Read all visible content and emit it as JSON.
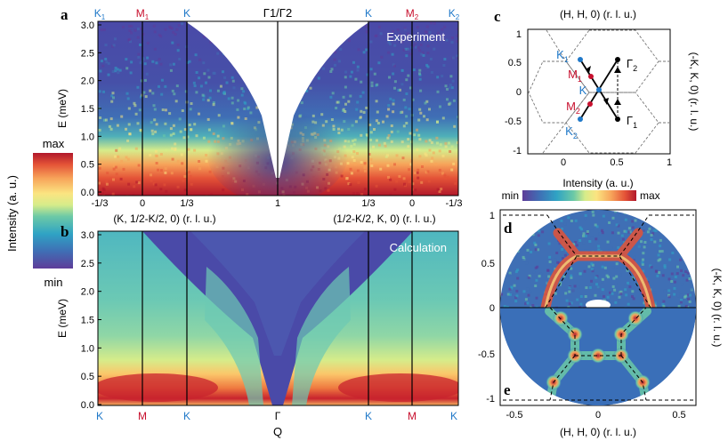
{
  "colors": {
    "k_blue": "#1f78c8",
    "m_red": "#c8102e",
    "cmap": [
      "#5e3c99",
      "#3f6fb5",
      "#2fa3c4",
      "#6cc9a6",
      "#d6ec8a",
      "#fbe481",
      "#f7a45a",
      "#e45337",
      "#b1182b"
    ]
  },
  "colorbar": {
    "title": "Intensity (a. u.)",
    "max_label": "max",
    "min_label": "min"
  },
  "panel_a": {
    "letter": "a",
    "inset_label": "Experiment",
    "ylabel": "E (meV)",
    "yticks": [
      "0.0",
      "0.5",
      "1.0",
      "1.5",
      "2.0",
      "2.5",
      "3.0"
    ],
    "top_labels": {
      "k1": {
        "base": "K",
        "sub": "1"
      },
      "m1": {
        "base": "M",
        "sub": "1"
      },
      "k_left": "K",
      "gamma": "Γ1/Γ2",
      "k_right": "K",
      "m2": {
        "base": "M",
        "sub": "2"
      },
      "k2": {
        "base": "K",
        "sub": "2"
      }
    },
    "xticks": [
      "-1/3",
      "0",
      "1/3",
      "1",
      "1/3",
      "0",
      "-1/3"
    ],
    "xlabel_left": "(K, 1/2-K/2, 0) (r. l. u.)",
    "xlabel_right": "(1/2-K/2, K, 0) (r. l. u.)"
  },
  "panel_b": {
    "letter": "b",
    "inset_label": "Calculation",
    "ylabel": "E (meV)",
    "yticks": [
      "0.0",
      "0.5",
      "1.0",
      "1.5",
      "2.0",
      "2.5",
      "3.0"
    ],
    "xticks": [
      "K",
      "M",
      "K",
      "Γ",
      "K",
      "M",
      "K"
    ],
    "xlabel": "Q"
  },
  "panel_c": {
    "letter": "c",
    "title": "(H, H, 0) (r. l. u.)",
    "ylabel": "(-K, K, 0) (r. l. u.)",
    "xticks": [
      "0",
      "0.5",
      "1"
    ],
    "yticks": [
      "1",
      "0.5",
      "0",
      "-0.5",
      "-1"
    ],
    "points": {
      "k1": {
        "base": "K",
        "sub": "1"
      },
      "m1": {
        "base": "M",
        "sub": "1"
      },
      "k": "K",
      "m2": {
        "base": "M",
        "sub": "2"
      },
      "k2": {
        "base": "K",
        "sub": "2"
      },
      "g2": {
        "base": "Γ",
        "sub": "2"
      },
      "g1": {
        "base": "Γ",
        "sub": "1"
      }
    }
  },
  "panel_de": {
    "letter_d": "d",
    "letter_e": "e",
    "cbar_title": "Intensity (a. u.)",
    "cbar_min": "min",
    "cbar_max": "max",
    "xlabel": "(H, H, 0) (r. l. u.)",
    "ylabel": "(-K, K, 0) (r. l. u.)",
    "xticks": [
      "-0.5",
      "0",
      "0.5"
    ],
    "yticks": [
      "1",
      "0.5",
      "0",
      "-0.5",
      "-1"
    ]
  }
}
